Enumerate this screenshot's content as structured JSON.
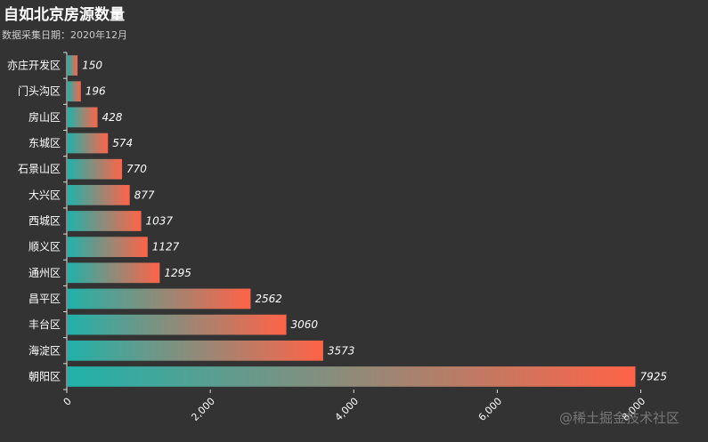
{
  "chart_data": {
    "type": "bar",
    "orientation": "horizontal",
    "title": "自如北京房源数量",
    "subtitle": "数据采集日期：2020年12月",
    "categories": [
      "亦庄开发区",
      "门头沟区",
      "房山区",
      "东城区",
      "石景山区",
      "大兴区",
      "西城区",
      "顺义区",
      "通州区",
      "昌平区",
      "丰台区",
      "海淀区",
      "朝阳区"
    ],
    "values": [
      150,
      196,
      428,
      574,
      770,
      877,
      1037,
      1127,
      1295,
      2562,
      3060,
      3573,
      7925
    ],
    "x_ticks": [
      "0",
      "2,000",
      "4,000",
      "6,000",
      "8,000"
    ],
    "xlim": [
      0,
      8000
    ],
    "grid": false,
    "gradient_colors": [
      "#20b2aa",
      "#ff6347"
    ]
  },
  "watermark": "@稀土掘金技术社区"
}
